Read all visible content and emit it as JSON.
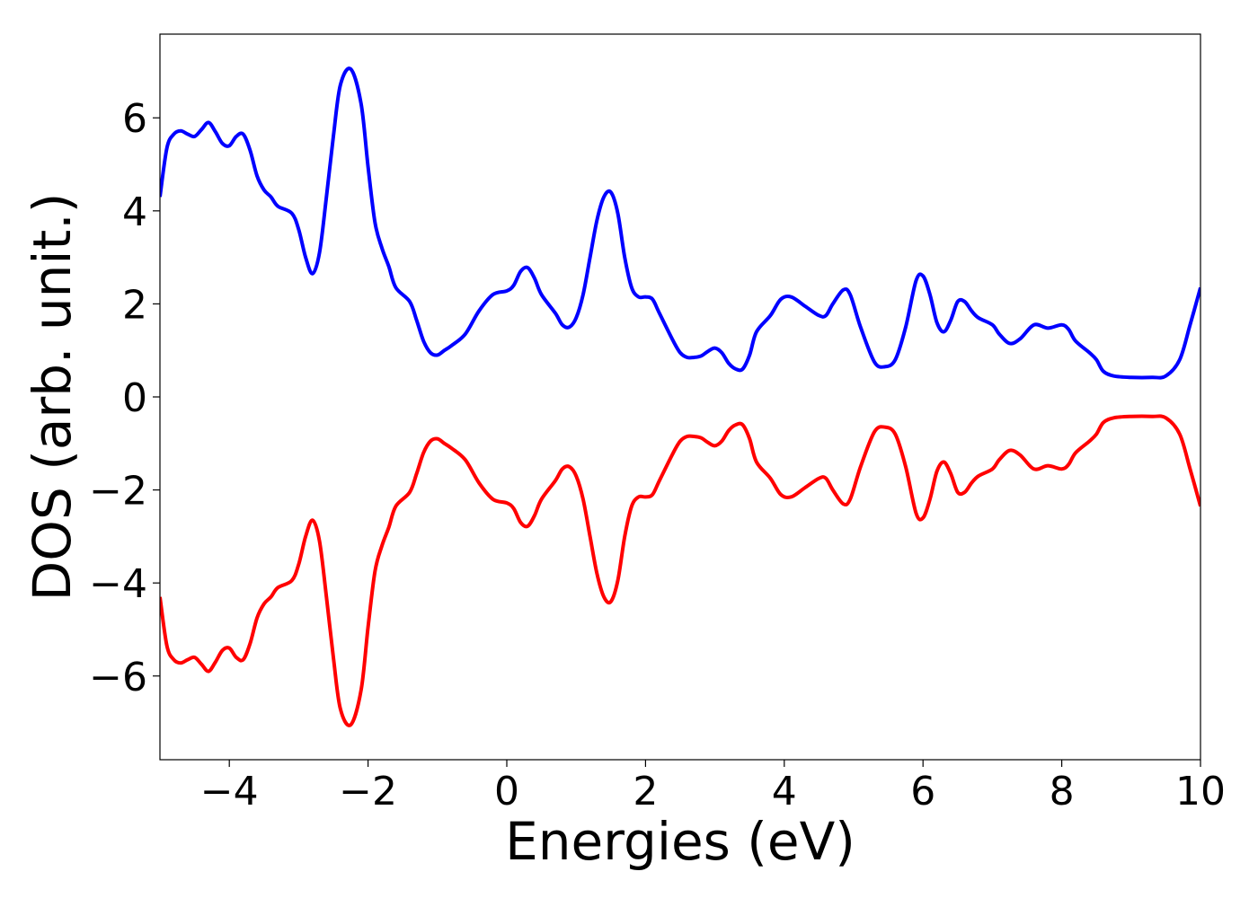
{
  "chart_data": {
    "type": "line",
    "title": "",
    "xlabel": "Energies (eV)",
    "ylabel": "DOS (arb. unit.)",
    "xlim": [
      -5,
      10
    ],
    "ylim": [
      -7.8,
      7.8
    ],
    "xticks": [
      -4,
      -2,
      0,
      2,
      4,
      6,
      8,
      10
    ],
    "xtick_labels": [
      "−4",
      "−2",
      "0",
      "2",
      "4",
      "6",
      "8",
      "10"
    ],
    "yticks": [
      -6,
      -4,
      -2,
      0,
      2,
      4,
      6
    ],
    "ytick_labels": [
      "−6",
      "−4",
      "−2",
      "0",
      "2",
      "4",
      "6"
    ],
    "grid": false,
    "legend": "none",
    "series": [
      {
        "color": "#0000ff",
        "points": [
          [
            -5.0,
            4.3
          ],
          [
            -4.9,
            5.35
          ],
          [
            -4.8,
            5.65
          ],
          [
            -4.7,
            5.72
          ],
          [
            -4.6,
            5.65
          ],
          [
            -4.5,
            5.6
          ],
          [
            -4.4,
            5.75
          ],
          [
            -4.3,
            5.9
          ],
          [
            -4.2,
            5.7
          ],
          [
            -4.1,
            5.45
          ],
          [
            -4.0,
            5.4
          ],
          [
            -3.9,
            5.6
          ],
          [
            -3.8,
            5.65
          ],
          [
            -3.7,
            5.3
          ],
          [
            -3.6,
            4.75
          ],
          [
            -3.5,
            4.45
          ],
          [
            -3.4,
            4.3
          ],
          [
            -3.3,
            4.1
          ],
          [
            -3.1,
            3.95
          ],
          [
            -3.0,
            3.6
          ],
          [
            -2.9,
            3.0
          ],
          [
            -2.8,
            2.65
          ],
          [
            -2.7,
            3.1
          ],
          [
            -2.6,
            4.3
          ],
          [
            -2.5,
            5.6
          ],
          [
            -2.4,
            6.7
          ],
          [
            -2.25,
            7.05
          ],
          [
            -2.1,
            6.3
          ],
          [
            -2.0,
            4.95
          ],
          [
            -1.9,
            3.75
          ],
          [
            -1.8,
            3.2
          ],
          [
            -1.7,
            2.8
          ],
          [
            -1.6,
            2.35
          ],
          [
            -1.4,
            2.05
          ],
          [
            -1.3,
            1.65
          ],
          [
            -1.2,
            1.2
          ],
          [
            -1.1,
            0.95
          ],
          [
            -1.0,
            0.9
          ],
          [
            -0.9,
            1.0
          ],
          [
            -0.8,
            1.1
          ],
          [
            -0.6,
            1.35
          ],
          [
            -0.4,
            1.85
          ],
          [
            -0.2,
            2.2
          ],
          [
            0.0,
            2.28
          ],
          [
            0.1,
            2.4
          ],
          [
            0.2,
            2.7
          ],
          [
            0.3,
            2.78
          ],
          [
            0.4,
            2.55
          ],
          [
            0.5,
            2.2
          ],
          [
            0.7,
            1.8
          ],
          [
            0.8,
            1.55
          ],
          [
            0.9,
            1.5
          ],
          [
            1.0,
            1.7
          ],
          [
            1.1,
            2.2
          ],
          [
            1.2,
            3.0
          ],
          [
            1.3,
            3.8
          ],
          [
            1.4,
            4.3
          ],
          [
            1.5,
            4.4
          ],
          [
            1.6,
            3.95
          ],
          [
            1.7,
            3.0
          ],
          [
            1.8,
            2.35
          ],
          [
            1.9,
            2.15
          ],
          [
            2.0,
            2.15
          ],
          [
            2.1,
            2.1
          ],
          [
            2.2,
            1.8
          ],
          [
            2.4,
            1.2
          ],
          [
            2.5,
            0.95
          ],
          [
            2.6,
            0.85
          ],
          [
            2.7,
            0.85
          ],
          [
            2.8,
            0.88
          ],
          [
            2.9,
            0.98
          ],
          [
            3.0,
            1.05
          ],
          [
            3.1,
            0.95
          ],
          [
            3.2,
            0.72
          ],
          [
            3.3,
            0.6
          ],
          [
            3.4,
            0.6
          ],
          [
            3.5,
            0.9
          ],
          [
            3.6,
            1.4
          ],
          [
            3.8,
            1.75
          ],
          [
            3.95,
            2.1
          ],
          [
            4.1,
            2.15
          ],
          [
            4.3,
            1.95
          ],
          [
            4.5,
            1.75
          ],
          [
            4.6,
            1.75
          ],
          [
            4.7,
            2.0
          ],
          [
            4.85,
            2.3
          ],
          [
            4.95,
            2.2
          ],
          [
            5.1,
            1.5
          ],
          [
            5.3,
            0.75
          ],
          [
            5.45,
            0.65
          ],
          [
            5.6,
            0.8
          ],
          [
            5.75,
            1.5
          ],
          [
            5.9,
            2.5
          ],
          [
            6.0,
            2.6
          ],
          [
            6.1,
            2.2
          ],
          [
            6.2,
            1.6
          ],
          [
            6.3,
            1.4
          ],
          [
            6.4,
            1.65
          ],
          [
            6.5,
            2.05
          ],
          [
            6.6,
            2.05
          ],
          [
            6.7,
            1.85
          ],
          [
            6.8,
            1.7
          ],
          [
            7.0,
            1.55
          ],
          [
            7.1,
            1.35
          ],
          [
            7.25,
            1.15
          ],
          [
            7.4,
            1.25
          ],
          [
            7.6,
            1.55
          ],
          [
            7.8,
            1.48
          ],
          [
            8.0,
            1.55
          ],
          [
            8.1,
            1.45
          ],
          [
            8.2,
            1.2
          ],
          [
            8.4,
            0.95
          ],
          [
            8.5,
            0.8
          ],
          [
            8.6,
            0.55
          ],
          [
            8.75,
            0.45
          ],
          [
            9.0,
            0.42
          ],
          [
            9.3,
            0.42
          ],
          [
            9.5,
            0.45
          ],
          [
            9.7,
            0.8
          ],
          [
            9.85,
            1.55
          ],
          [
            10.0,
            2.35
          ]
        ]
      },
      {
        "color": "#ff0000",
        "points": [
          [
            -5.0,
            -4.3
          ],
          [
            -4.9,
            -5.35
          ],
          [
            -4.8,
            -5.65
          ],
          [
            -4.7,
            -5.72
          ],
          [
            -4.6,
            -5.65
          ],
          [
            -4.5,
            -5.6
          ],
          [
            -4.4,
            -5.75
          ],
          [
            -4.3,
            -5.9
          ],
          [
            -4.2,
            -5.7
          ],
          [
            -4.1,
            -5.45
          ],
          [
            -4.0,
            -5.4
          ],
          [
            -3.9,
            -5.6
          ],
          [
            -3.8,
            -5.65
          ],
          [
            -3.7,
            -5.3
          ],
          [
            -3.6,
            -4.75
          ],
          [
            -3.5,
            -4.45
          ],
          [
            -3.4,
            -4.3
          ],
          [
            -3.3,
            -4.1
          ],
          [
            -3.1,
            -3.95
          ],
          [
            -3.0,
            -3.6
          ],
          [
            -2.9,
            -3.0
          ],
          [
            -2.8,
            -2.65
          ],
          [
            -2.7,
            -3.1
          ],
          [
            -2.6,
            -4.3
          ],
          [
            -2.5,
            -5.6
          ],
          [
            -2.4,
            -6.7
          ],
          [
            -2.25,
            -7.05
          ],
          [
            -2.1,
            -6.3
          ],
          [
            -2.0,
            -4.95
          ],
          [
            -1.9,
            -3.75
          ],
          [
            -1.8,
            -3.2
          ],
          [
            -1.7,
            -2.8
          ],
          [
            -1.6,
            -2.35
          ],
          [
            -1.4,
            -2.05
          ],
          [
            -1.3,
            -1.65
          ],
          [
            -1.2,
            -1.2
          ],
          [
            -1.1,
            -0.95
          ],
          [
            -1.0,
            -0.9
          ],
          [
            -0.9,
            -1.0
          ],
          [
            -0.8,
            -1.1
          ],
          [
            -0.6,
            -1.35
          ],
          [
            -0.4,
            -1.85
          ],
          [
            -0.2,
            -2.2
          ],
          [
            0.0,
            -2.28
          ],
          [
            0.1,
            -2.4
          ],
          [
            0.2,
            -2.7
          ],
          [
            0.3,
            -2.78
          ],
          [
            0.4,
            -2.55
          ],
          [
            0.5,
            -2.2
          ],
          [
            0.7,
            -1.8
          ],
          [
            0.8,
            -1.55
          ],
          [
            0.9,
            -1.5
          ],
          [
            1.0,
            -1.7
          ],
          [
            1.1,
            -2.2
          ],
          [
            1.2,
            -3.0
          ],
          [
            1.3,
            -3.8
          ],
          [
            1.4,
            -4.3
          ],
          [
            1.5,
            -4.4
          ],
          [
            1.6,
            -3.95
          ],
          [
            1.7,
            -3.0
          ],
          [
            1.8,
            -2.35
          ],
          [
            1.9,
            -2.15
          ],
          [
            2.0,
            -2.15
          ],
          [
            2.1,
            -2.1
          ],
          [
            2.2,
            -1.8
          ],
          [
            2.4,
            -1.2
          ],
          [
            2.5,
            -0.95
          ],
          [
            2.6,
            -0.85
          ],
          [
            2.7,
            -0.85
          ],
          [
            2.8,
            -0.88
          ],
          [
            2.9,
            -0.98
          ],
          [
            3.0,
            -1.05
          ],
          [
            3.1,
            -0.95
          ],
          [
            3.2,
            -0.72
          ],
          [
            3.3,
            -0.6
          ],
          [
            3.4,
            -0.6
          ],
          [
            3.5,
            -0.9
          ],
          [
            3.6,
            -1.4
          ],
          [
            3.8,
            -1.75
          ],
          [
            3.95,
            -2.1
          ],
          [
            4.1,
            -2.15
          ],
          [
            4.3,
            -1.95
          ],
          [
            4.5,
            -1.75
          ],
          [
            4.6,
            -1.75
          ],
          [
            4.7,
            -2.0
          ],
          [
            4.85,
            -2.3
          ],
          [
            4.95,
            -2.2
          ],
          [
            5.1,
            -1.5
          ],
          [
            5.3,
            -0.75
          ],
          [
            5.45,
            -0.65
          ],
          [
            5.6,
            -0.8
          ],
          [
            5.75,
            -1.5
          ],
          [
            5.9,
            -2.5
          ],
          [
            6.0,
            -2.6
          ],
          [
            6.1,
            -2.2
          ],
          [
            6.2,
            -1.6
          ],
          [
            6.3,
            -1.4
          ],
          [
            6.4,
            -1.65
          ],
          [
            6.5,
            -2.05
          ],
          [
            6.6,
            -2.05
          ],
          [
            6.7,
            -1.85
          ],
          [
            6.8,
            -1.7
          ],
          [
            7.0,
            -1.55
          ],
          [
            7.1,
            -1.35
          ],
          [
            7.25,
            -1.15
          ],
          [
            7.4,
            -1.25
          ],
          [
            7.6,
            -1.55
          ],
          [
            7.8,
            -1.48
          ],
          [
            8.0,
            -1.55
          ],
          [
            8.1,
            -1.45
          ],
          [
            8.2,
            -1.2
          ],
          [
            8.4,
            -0.95
          ],
          [
            8.5,
            -0.8
          ],
          [
            8.6,
            -0.55
          ],
          [
            8.75,
            -0.45
          ],
          [
            9.0,
            -0.42
          ],
          [
            9.3,
            -0.42
          ],
          [
            9.5,
            -0.45
          ],
          [
            9.7,
            -0.8
          ],
          [
            9.85,
            -1.55
          ],
          [
            10.0,
            -2.35
          ]
        ]
      }
    ]
  }
}
